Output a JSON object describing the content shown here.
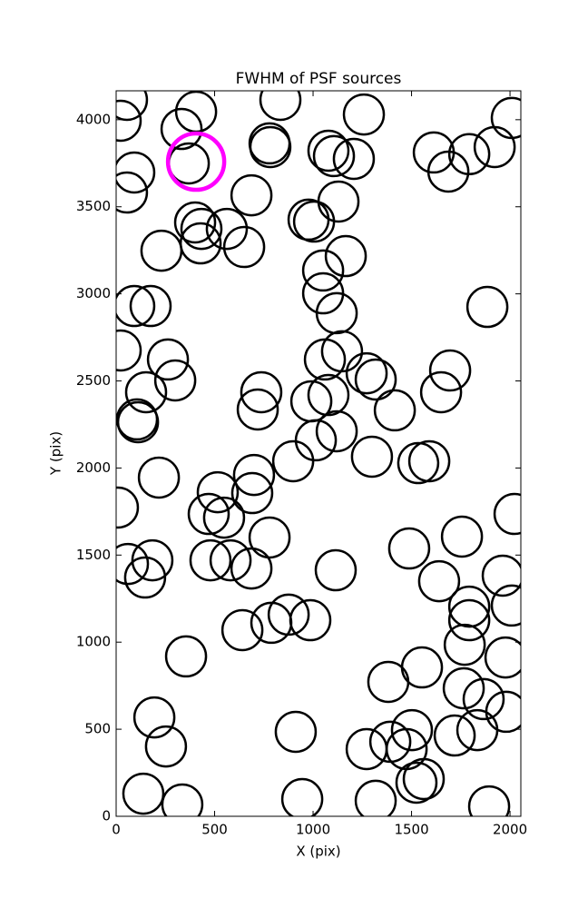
{
  "chart_data": {
    "type": "scatter",
    "title": "FWHM of PSF sources",
    "x_label": "X (pix)",
    "y_label": "Y (pix)",
    "xlim": [
      0,
      2055
    ],
    "ylim": [
      0,
      4166
    ],
    "xticks": [
      0,
      500,
      1000,
      1500,
      2000
    ],
    "yticks": [
      0,
      500,
      1000,
      1500,
      2000,
      2500,
      3000,
      3500,
      4000
    ],
    "grid": false,
    "series": [
      {
        "color": "#000000",
        "x": [
          55,
          23,
          332,
          406,
          834,
          1258,
          2009,
          779,
          783,
          1078,
          1106,
          1207,
          1613,
          1793,
          1922,
          1687,
          92,
          369,
          55,
          687,
          1129,
          401,
          433,
          562,
          977,
          1005,
          230,
          429,
          650,
          1166,
          1051,
          1051,
          1120,
          92,
          175,
          1885,
          23,
          263,
          300,
          1147,
          1060,
          1272,
          1318,
          152,
          737,
          719,
          991,
          1078,
          1696,
          1650,
          1415,
          106,
          111,
          1120,
          1014,
          1299,
          899,
          1534,
          1590,
          217,
          700,
          516,
          691,
          9,
          470,
          548,
          2023,
          1756,
          779,
          60,
          184,
          147,
          479,
          581,
          687,
          1115,
          1488,
          1640,
          1963,
          2009,
          1793,
          1793,
          876,
          788,
          986,
          641,
          355,
          1770,
          1977,
          1382,
          1553,
          1765,
          1866,
          1981,
          1834,
          1719,
          1502,
          912,
          194,
          253,
          1272,
          1392,
          1475,
          1562,
          1525,
          138,
          336,
          945,
          1318,
          1894
        ],
        "y": [
          4114,
          3994,
          3947,
          4046,
          4114,
          4030,
          4010,
          3864,
          3843,
          3822,
          3791,
          3775,
          3812,
          3802,
          3843,
          3702,
          3697,
          3749,
          3582,
          3566,
          3530,
          3410,
          3373,
          3373,
          3426,
          3415,
          3248,
          3290,
          3269,
          3217,
          3134,
          3003,
          2889,
          2930,
          2930,
          2925,
          2675,
          2623,
          2503,
          2670,
          2623,
          2544,
          2508,
          2435,
          2435,
          2336,
          2383,
          2419,
          2560,
          2435,
          2331,
          2279,
          2263,
          2211,
          2159,
          2065,
          2039,
          2028,
          2039,
          1945,
          1960,
          1861,
          1856,
          1773,
          1736,
          1715,
          1736,
          1606,
          1601,
          1449,
          1470,
          1371,
          1470,
          1470,
          1423,
          1413,
          1538,
          1350,
          1382,
          1210,
          1204,
          1126,
          1158,
          1111,
          1126,
          1069,
          918,
          985,
          912,
          772,
          855,
          735,
          673,
          600,
          495,
          464,
          495,
          485,
          568,
          401,
          386,
          428,
          386,
          214,
          193,
          130,
          68,
          99,
          89,
          57
        ]
      },
      {
        "color": "#ff00ff",
        "x": [
          406
        ],
        "y": [
          3759
        ]
      }
    ]
  }
}
